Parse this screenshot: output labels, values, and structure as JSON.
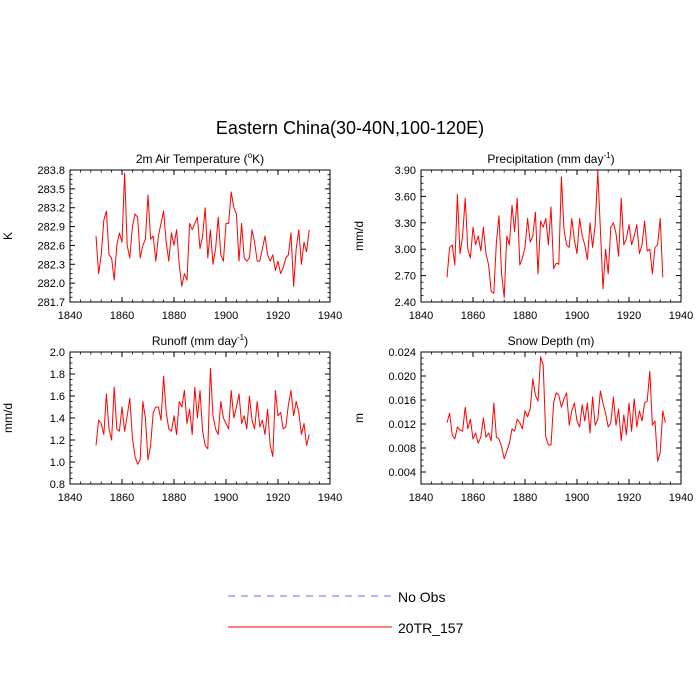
{
  "title": "Eastern China(30-40N,100-120E)",
  "colors": {
    "model": "#ff0000",
    "obs": "#6666ff"
  },
  "legend": {
    "obs_label": "No Obs",
    "model_label": "20TR_157"
  },
  "chart_data": [
    {
      "type": "line",
      "title_text": "2m Air Temperature (",
      "title_sup": "o",
      "title_after": "K)",
      "ylabel": "K",
      "xlim": [
        1840,
        1940
      ],
      "ylim": [
        281.7,
        283.8
      ],
      "xticks": [
        "1840",
        "1860",
        "1880",
        "1900",
        "1920",
        "1940"
      ],
      "yticks": [
        "281.7",
        "282.0",
        "282.3",
        "282.6",
        "282.9",
        "283.2",
        "283.5",
        "283.8"
      ],
      "x_start": 1850,
      "series": [
        {
          "name": "20TR_157",
          "values": [
            282.75,
            282.15,
            282.45,
            283.0,
            283.15,
            282.45,
            282.4,
            282.05,
            282.6,
            282.8,
            282.65,
            283.75,
            282.6,
            282.4,
            282.9,
            283.1,
            283.05,
            282.4,
            282.6,
            282.7,
            283.4,
            282.7,
            282.75,
            282.35,
            282.75,
            282.95,
            283.15,
            282.65,
            282.35,
            282.8,
            282.6,
            282.85,
            282.3,
            281.95,
            282.15,
            282.05,
            282.95,
            282.85,
            282.95,
            283.05,
            282.55,
            282.75,
            283.2,
            282.4,
            282.85,
            282.3,
            282.55,
            283.05,
            282.45,
            282.35,
            282.95,
            282.95,
            283.45,
            283.2,
            283.1,
            282.35,
            282.95,
            282.4,
            282.35,
            282.4,
            282.85,
            282.65,
            282.35,
            282.35,
            282.55,
            282.75,
            282.45,
            282.35,
            282.45,
            282.2,
            282.35,
            282.15,
            282.25,
            282.4,
            282.45,
            282.8,
            281.95,
            282.55,
            282.85,
            282.3,
            282.65,
            282.5,
            282.85
          ]
        }
      ]
    },
    {
      "type": "line",
      "title_text": "Precipitation (mm day",
      "title_sup": "-1",
      "title_after": ")",
      "ylabel": "mm/d",
      "xlim": [
        1840,
        1940
      ],
      "ylim": [
        2.4,
        3.9
      ],
      "xticks": [
        "1840",
        "1860",
        "1880",
        "1900",
        "1920",
        "1940"
      ],
      "yticks": [
        "2.40",
        "2.70",
        "3.00",
        "3.30",
        "3.60",
        "3.90"
      ],
      "x_start": 1850,
      "series": [
        {
          "name": "20TR_157",
          "values": [
            2.68,
            3.02,
            3.05,
            2.82,
            3.62,
            2.95,
            3.15,
            3.58,
            3.0,
            2.9,
            3.25,
            3.05,
            3.15,
            2.98,
            3.25,
            2.95,
            2.82,
            2.52,
            2.5,
            3.08,
            3.38,
            2.72,
            2.45,
            3.15,
            3.05,
            3.5,
            3.2,
            3.58,
            2.82,
            2.9,
            3.02,
            3.35,
            3.08,
            3.15,
            3.42,
            2.72,
            3.32,
            3.25,
            3.35,
            3.05,
            3.48,
            2.78,
            2.84,
            2.83,
            3.82,
            3.22,
            3.05,
            3.02,
            3.35,
            3.1,
            2.95,
            3.35,
            3.15,
            3.05,
            2.88,
            3.3,
            3.02,
            3.28,
            3.88,
            3.22,
            2.55,
            3.0,
            2.72,
            3.25,
            3.3,
            3.18,
            2.92,
            3.58,
            3.05,
            3.12,
            3.28,
            3.05,
            3.15,
            3.28,
            2.95,
            3.05,
            3.32,
            2.98,
            3.0,
            2.72,
            3.02,
            3.05,
            3.35,
            2.68
          ]
        }
      ]
    },
    {
      "type": "line",
      "title_text": "Runoff (mm day",
      "title_sup": "-1",
      "title_after": ")",
      "ylabel": "mm/d",
      "xlim": [
        1840,
        1940
      ],
      "ylim": [
        0.8,
        2.0
      ],
      "xticks": [
        "1840",
        "1860",
        "1880",
        "1900",
        "1920",
        "1940"
      ],
      "yticks": [
        "0.8",
        "1.0",
        "1.2",
        "1.4",
        "1.6",
        "1.8",
        "2.0"
      ],
      "x_start": 1850,
      "series": [
        {
          "name": "20TR_157",
          "values": [
            1.15,
            1.38,
            1.35,
            1.25,
            1.62,
            1.3,
            1.2,
            1.68,
            1.3,
            1.28,
            1.5,
            1.28,
            1.42,
            1.58,
            1.22,
            1.05,
            0.98,
            1.02,
            1.55,
            1.4,
            1.02,
            1.15,
            1.45,
            1.5,
            1.5,
            1.38,
            1.78,
            1.45,
            1.3,
            1.28,
            1.42,
            1.25,
            1.55,
            1.5,
            1.65,
            1.35,
            1.48,
            1.25,
            1.68,
            1.4,
            1.65,
            1.28,
            1.15,
            1.12,
            1.85,
            1.42,
            1.3,
            1.25,
            1.55,
            1.4,
            1.35,
            1.3,
            1.65,
            1.4,
            1.5,
            1.62,
            1.35,
            1.42,
            1.3,
            1.6,
            1.38,
            1.3,
            1.55,
            1.32,
            1.38,
            1.25,
            1.48,
            1.15,
            1.05,
            1.65,
            1.42,
            1.45,
            1.3,
            1.32,
            1.52,
            1.65,
            1.42,
            1.55,
            1.45,
            1.25,
            1.35,
            1.15,
            1.25
          ]
        }
      ]
    },
    {
      "type": "line",
      "title_text": "Snow Depth (m)",
      "title_sup": "",
      "title_after": "",
      "ylabel": "m",
      "xlim": [
        1840,
        1940
      ],
      "ylim": [
        0.002,
        0.024
      ],
      "xticks": [
        "1840",
        "1860",
        "1880",
        "1900",
        "1920",
        "1940"
      ],
      "yticks": [
        "0.004",
        "0.008",
        "0.012",
        "0.016",
        "0.020",
        "0.024"
      ],
      "x_start": 1850,
      "series": [
        {
          "name": "20TR_157",
          "values": [
            0.0122,
            0.0138,
            0.0102,
            0.0095,
            0.0115,
            0.011,
            0.0108,
            0.0148,
            0.0112,
            0.0128,
            0.0095,
            0.0105,
            0.0088,
            0.0098,
            0.013,
            0.0098,
            0.0105,
            0.0092,
            0.0155,
            0.0098,
            0.0095,
            0.0082,
            0.0062,
            0.0075,
            0.0088,
            0.0112,
            0.0108,
            0.0128,
            0.0122,
            0.0112,
            0.0142,
            0.0132,
            0.0145,
            0.0195,
            0.0168,
            0.0158,
            0.0232,
            0.0218,
            0.0098,
            0.0085,
            0.0085,
            0.0155,
            0.0172,
            0.0168,
            0.0148,
            0.0162,
            0.0172,
            0.0118,
            0.0142,
            0.0155,
            0.0125,
            0.0115,
            0.0152,
            0.0125,
            0.0155,
            0.0105,
            0.0165,
            0.0118,
            0.0128,
            0.0175,
            0.0155,
            0.0138,
            0.0115,
            0.0122,
            0.0165,
            0.0118,
            0.0145,
            0.0092,
            0.0135,
            0.0102,
            0.0155,
            0.0108,
            0.0162,
            0.0115,
            0.0142,
            0.0125,
            0.0155,
            0.0158,
            0.0208,
            0.0118,
            0.0125,
            0.0058,
            0.0072,
            0.0142,
            0.0122
          ]
        }
      ]
    }
  ]
}
